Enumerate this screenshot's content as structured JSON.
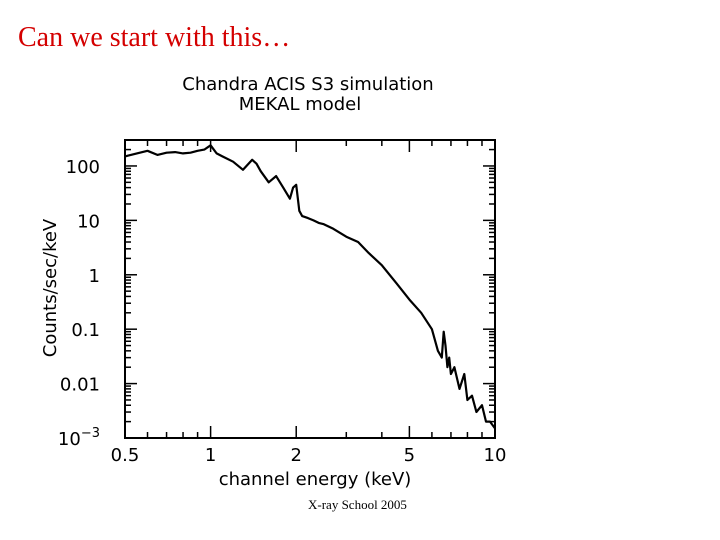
{
  "slide": {
    "title": "Can we start with this…",
    "footer": "X-ray School 2005"
  },
  "chart_data": {
    "type": "line",
    "title": "Chandra ACIS S3 simulation",
    "subtitle": "MEKAL model",
    "xlabel": "channel energy (keV)",
    "ylabel": "Counts/sec/keV",
    "xscale": "log",
    "yscale": "log",
    "xlim": [
      0.5,
      10
    ],
    "ylim": [
      0.001,
      300
    ],
    "xticks": [
      {
        "value": 0.5,
        "label": "0.5"
      },
      {
        "value": 1,
        "label": "1"
      },
      {
        "value": 2,
        "label": "2"
      },
      {
        "value": 5,
        "label": "5"
      },
      {
        "value": 10,
        "label": "10"
      }
    ],
    "yticks": [
      {
        "value": 100,
        "label": "100"
      },
      {
        "value": 10,
        "label": "10"
      },
      {
        "value": 1,
        "label": "1"
      },
      {
        "value": 0.1,
        "label": "0.1"
      },
      {
        "value": 0.01,
        "label": "0.01"
      },
      {
        "value": 0.001,
        "label": "10",
        "sup": "−3"
      }
    ],
    "grid": false,
    "series": [
      {
        "name": "MEKAL spectrum",
        "color": "#000000",
        "x": [
          0.5,
          0.55,
          0.6,
          0.65,
          0.7,
          0.75,
          0.8,
          0.85,
          0.9,
          0.95,
          1.0,
          1.05,
          1.1,
          1.2,
          1.3,
          1.4,
          1.45,
          1.5,
          1.6,
          1.7,
          1.8,
          1.9,
          1.95,
          2.0,
          2.05,
          2.1,
          2.2,
          2.3,
          2.4,
          2.5,
          2.7,
          3.0,
          3.3,
          3.6,
          4.0,
          4.5,
          5.0,
          5.5,
          6.0,
          6.3,
          6.5,
          6.6,
          6.7,
          6.8,
          6.9,
          7.0,
          7.2,
          7.5,
          7.8,
          8.0,
          8.3,
          8.6,
          9.0,
          9.3,
          9.6,
          10.0
        ],
        "y": [
          150,
          170,
          190,
          160,
          175,
          180,
          170,
          175,
          190,
          200,
          240,
          170,
          150,
          120,
          85,
          130,
          110,
          80,
          50,
          65,
          40,
          25,
          40,
          45,
          15,
          12,
          11,
          10,
          9,
          8.5,
          7,
          5,
          4,
          2.5,
          1.5,
          0.7,
          0.35,
          0.2,
          0.1,
          0.04,
          0.03,
          0.09,
          0.05,
          0.02,
          0.03,
          0.015,
          0.02,
          0.008,
          0.015,
          0.005,
          0.006,
          0.003,
          0.004,
          0.002,
          0.002,
          0.0015
        ]
      }
    ]
  }
}
